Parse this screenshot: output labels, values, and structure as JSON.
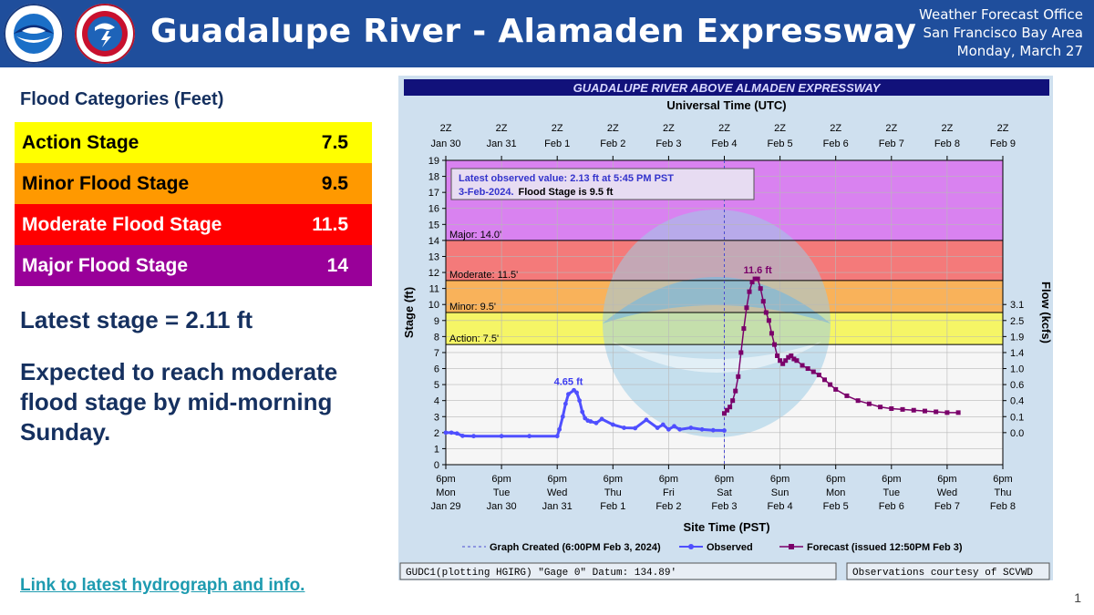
{
  "header": {
    "title": "Guadalupe River - Alamaden Expressway",
    "office_line1": "Weather Forecast Office",
    "office_line2": "San Francisco Bay Area",
    "office_line3": "Monday, March 27",
    "background_color": "#1f4e9c"
  },
  "flood_categories": {
    "heading": "Flood Categories (Feet)",
    "rows": [
      {
        "label": "Action Stage",
        "value": "7.5",
        "color": "#ffff00",
        "text_color": "#000000"
      },
      {
        "label": "Minor Flood Stage",
        "value": "9.5",
        "color": "#ff9900",
        "text_color": "#000000"
      },
      {
        "label": "Moderate Flood Stage",
        "value": "11.5",
        "color": "#ff0000",
        "text_color": "#ffffff"
      },
      {
        "label": "Major Flood Stage",
        "value": "14",
        "color": "#990099",
        "text_color": "#ffffff"
      }
    ]
  },
  "latest_stage_text": "Latest stage = 2.11 ft",
  "expected_text": "Expected to reach moderate flood stage by mid-morning Sunday.",
  "link_text": "Link to latest hydrograph and info.",
  "page_number": "1",
  "chart_data": {
    "type": "line",
    "title": "GUADALUPE RIVER ABOVE ALMADEN EXPRESSWAY",
    "top_axis_label": "Universal Time (UTC)",
    "top_ticks": [
      [
        "2Z",
        "Jan 30"
      ],
      [
        "2Z",
        "Jan 31"
      ],
      [
        "2Z",
        "Feb 1"
      ],
      [
        "2Z",
        "Feb 2"
      ],
      [
        "2Z",
        "Feb 3"
      ],
      [
        "2Z",
        "Feb 4"
      ],
      [
        "2Z",
        "Feb 5"
      ],
      [
        "2Z",
        "Feb 6"
      ],
      [
        "2Z",
        "Feb 7"
      ],
      [
        "2Z",
        "Feb 8"
      ],
      [
        "2Z",
        "Feb 9"
      ]
    ],
    "xlabel": "Site Time (PST)",
    "bottom_ticks": [
      [
        "6pm",
        "Mon",
        "Jan 29"
      ],
      [
        "6pm",
        "Tue",
        "Jan 30"
      ],
      [
        "6pm",
        "Wed",
        "Jan 31"
      ],
      [
        "6pm",
        "Thu",
        "Feb 1"
      ],
      [
        "6pm",
        "Fri",
        "Feb 2"
      ],
      [
        "6pm",
        "Sat",
        "Feb 3"
      ],
      [
        "6pm",
        "Sun",
        "Feb 4"
      ],
      [
        "6pm",
        "Mon",
        "Feb 5"
      ],
      [
        "6pm",
        "Tue",
        "Feb 6"
      ],
      [
        "6pm",
        "Wed",
        "Feb 7"
      ],
      [
        "6pm",
        "Thu",
        "Feb 8"
      ]
    ],
    "xlim_days": [
      0,
      10
    ],
    "ylabel": "Stage (ft)",
    "ylim": [
      0,
      19
    ],
    "y_ticks": [
      0,
      1,
      2,
      3,
      4,
      5,
      6,
      7,
      8,
      9,
      10,
      11,
      12,
      13,
      14,
      15,
      16,
      17,
      18,
      19
    ],
    "y2label": "Flow (kcfs)",
    "flow_ticks": [
      {
        "stage": 2,
        "label": "0.0"
      },
      {
        "stage": 3,
        "label": "0.1"
      },
      {
        "stage": 4,
        "label": "0.4"
      },
      {
        "stage": 5,
        "label": "0.6"
      },
      {
        "stage": 6,
        "label": "1.0"
      },
      {
        "stage": 7,
        "label": "1.4"
      },
      {
        "stage": 8,
        "label": "1.9"
      },
      {
        "stage": 9,
        "label": "2.5"
      },
      {
        "stage": 10,
        "label": "3.1"
      }
    ],
    "zones": [
      {
        "from": 14,
        "to": 19,
        "color": "#d982f0",
        "label": ""
      },
      {
        "from": 11.5,
        "to": 14,
        "color": "#f47a7a",
        "label": "Major: 14.0'"
      },
      {
        "from": 9.5,
        "to": 11.5,
        "color": "#f9b25a",
        "label": "Moderate: 11.5'"
      },
      {
        "from": 7.5,
        "to": 9.5,
        "color": "#f5f566",
        "label": "Minor: 9.5'"
      },
      {
        "from": 0,
        "to": 7.5,
        "color": "#f6f6f6",
        "label": "Action: 7.5'"
      }
    ],
    "info_box_line1": "Latest observed value: 2.13 ft at 5:45 PM PST",
    "info_box_line2a": "3-Feb-2024.",
    "info_box_line2b": "Flood Stage is 9.5 ft",
    "observed_peak_label": "4.65 ft",
    "forecast_peak_label": "11.6 ft",
    "legend_graph_created": "Graph Created (6:00PM Feb 3, 2024)",
    "legend_observed": "Observed",
    "legend_forecast": "Forecast (issued 12:50PM Feb 3)",
    "footer_left": "GUDC1(plotting HGIRG) \"Gage 0\" Datum: 134.89'",
    "footer_right": "Observations courtesy of SCVWD",
    "graph_created_day": 5,
    "observed_color": "#4f4fff",
    "forecast_color": "#7a006a",
    "series": [
      {
        "name": "Observed",
        "x": [
          0,
          0.1,
          0.2,
          0.3,
          0.5,
          1,
          1.5,
          2,
          2.04,
          2.1,
          2.15,
          2.2,
          2.3,
          2.35,
          2.4,
          2.45,
          2.5,
          2.55,
          2.6,
          2.7,
          2.8,
          3,
          3.2,
          3.4,
          3.6,
          3.8,
          3.9,
          4,
          4.1,
          4.2,
          4.4,
          4.6,
          4.8,
          5
        ],
        "y": [
          2.0,
          2.0,
          1.95,
          1.8,
          1.78,
          1.78,
          1.78,
          1.78,
          2.2,
          3.0,
          3.8,
          4.4,
          4.65,
          4.5,
          4.0,
          3.3,
          2.9,
          2.75,
          2.7,
          2.6,
          2.85,
          2.5,
          2.3,
          2.28,
          2.8,
          2.3,
          2.5,
          2.2,
          2.4,
          2.2,
          2.3,
          2.2,
          2.15,
          2.13
        ]
      },
      {
        "name": "Forecast",
        "x": [
          5,
          5.05,
          5.1,
          5.15,
          5.2,
          5.25,
          5.3,
          5.35,
          5.4,
          5.45,
          5.5,
          5.55,
          5.6,
          5.65,
          5.7,
          5.75,
          5.8,
          5.85,
          5.9,
          5.95,
          6,
          6.05,
          6.1,
          6.15,
          6.2,
          6.25,
          6.3,
          6.4,
          6.5,
          6.6,
          6.7,
          6.8,
          6.9,
          7,
          7.2,
          7.4,
          7.6,
          7.8,
          8,
          8.2,
          8.4,
          8.6,
          8.8,
          9,
          9.2
        ],
        "y": [
          3.2,
          3.4,
          3.6,
          4.0,
          4.6,
          5.5,
          7.0,
          8.5,
          9.8,
          10.8,
          11.4,
          11.6,
          11.6,
          11.0,
          10.2,
          9.5,
          9.0,
          8.2,
          7.5,
          6.8,
          6.5,
          6.3,
          6.5,
          6.7,
          6.8,
          6.6,
          6.5,
          6.2,
          6.0,
          5.8,
          5.6,
          5.3,
          5.0,
          4.7,
          4.3,
          4.0,
          3.8,
          3.6,
          3.5,
          3.45,
          3.4,
          3.35,
          3.3,
          3.25,
          3.25
        ]
      }
    ]
  }
}
